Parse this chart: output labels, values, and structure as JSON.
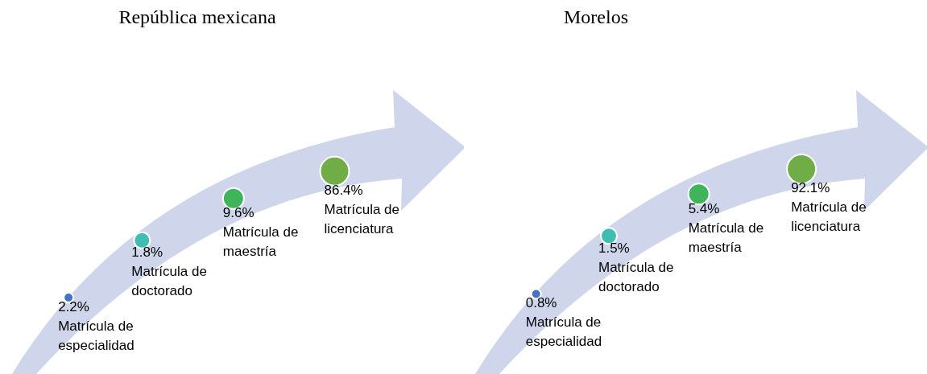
{
  "chart_data": [
    {
      "type": "other",
      "title": "República mexicana",
      "categories": [
        "Matrícula de especialidad",
        "Matrícula de doctorado",
        "Matrícula de maestría",
        "Matrícula de licenciatura"
      ],
      "values": [
        2.2,
        1.8,
        9.6,
        86.4
      ],
      "value_labels": [
        "2.2%",
        "1.8%",
        "9.6%",
        "86.4%"
      ],
      "colors": [
        "#4472c4",
        "#3fbdb3",
        "#3fb45a",
        "#70ad47"
      ]
    },
    {
      "type": "other",
      "title": "Morelos",
      "categories": [
        "Matrícula de especialidad",
        "Matrícula de doctorado",
        "Matrícula de maestría",
        "Matrícula de licenciatura"
      ],
      "values": [
        0.8,
        1.5,
        5.4,
        92.1
      ],
      "value_labels": [
        "0.8%",
        "1.5%",
        "5.4%",
        "92.1%"
      ],
      "colors": [
        "#4472c4",
        "#3fbdb3",
        "#3fb45a",
        "#70ad47"
      ]
    }
  ]
}
